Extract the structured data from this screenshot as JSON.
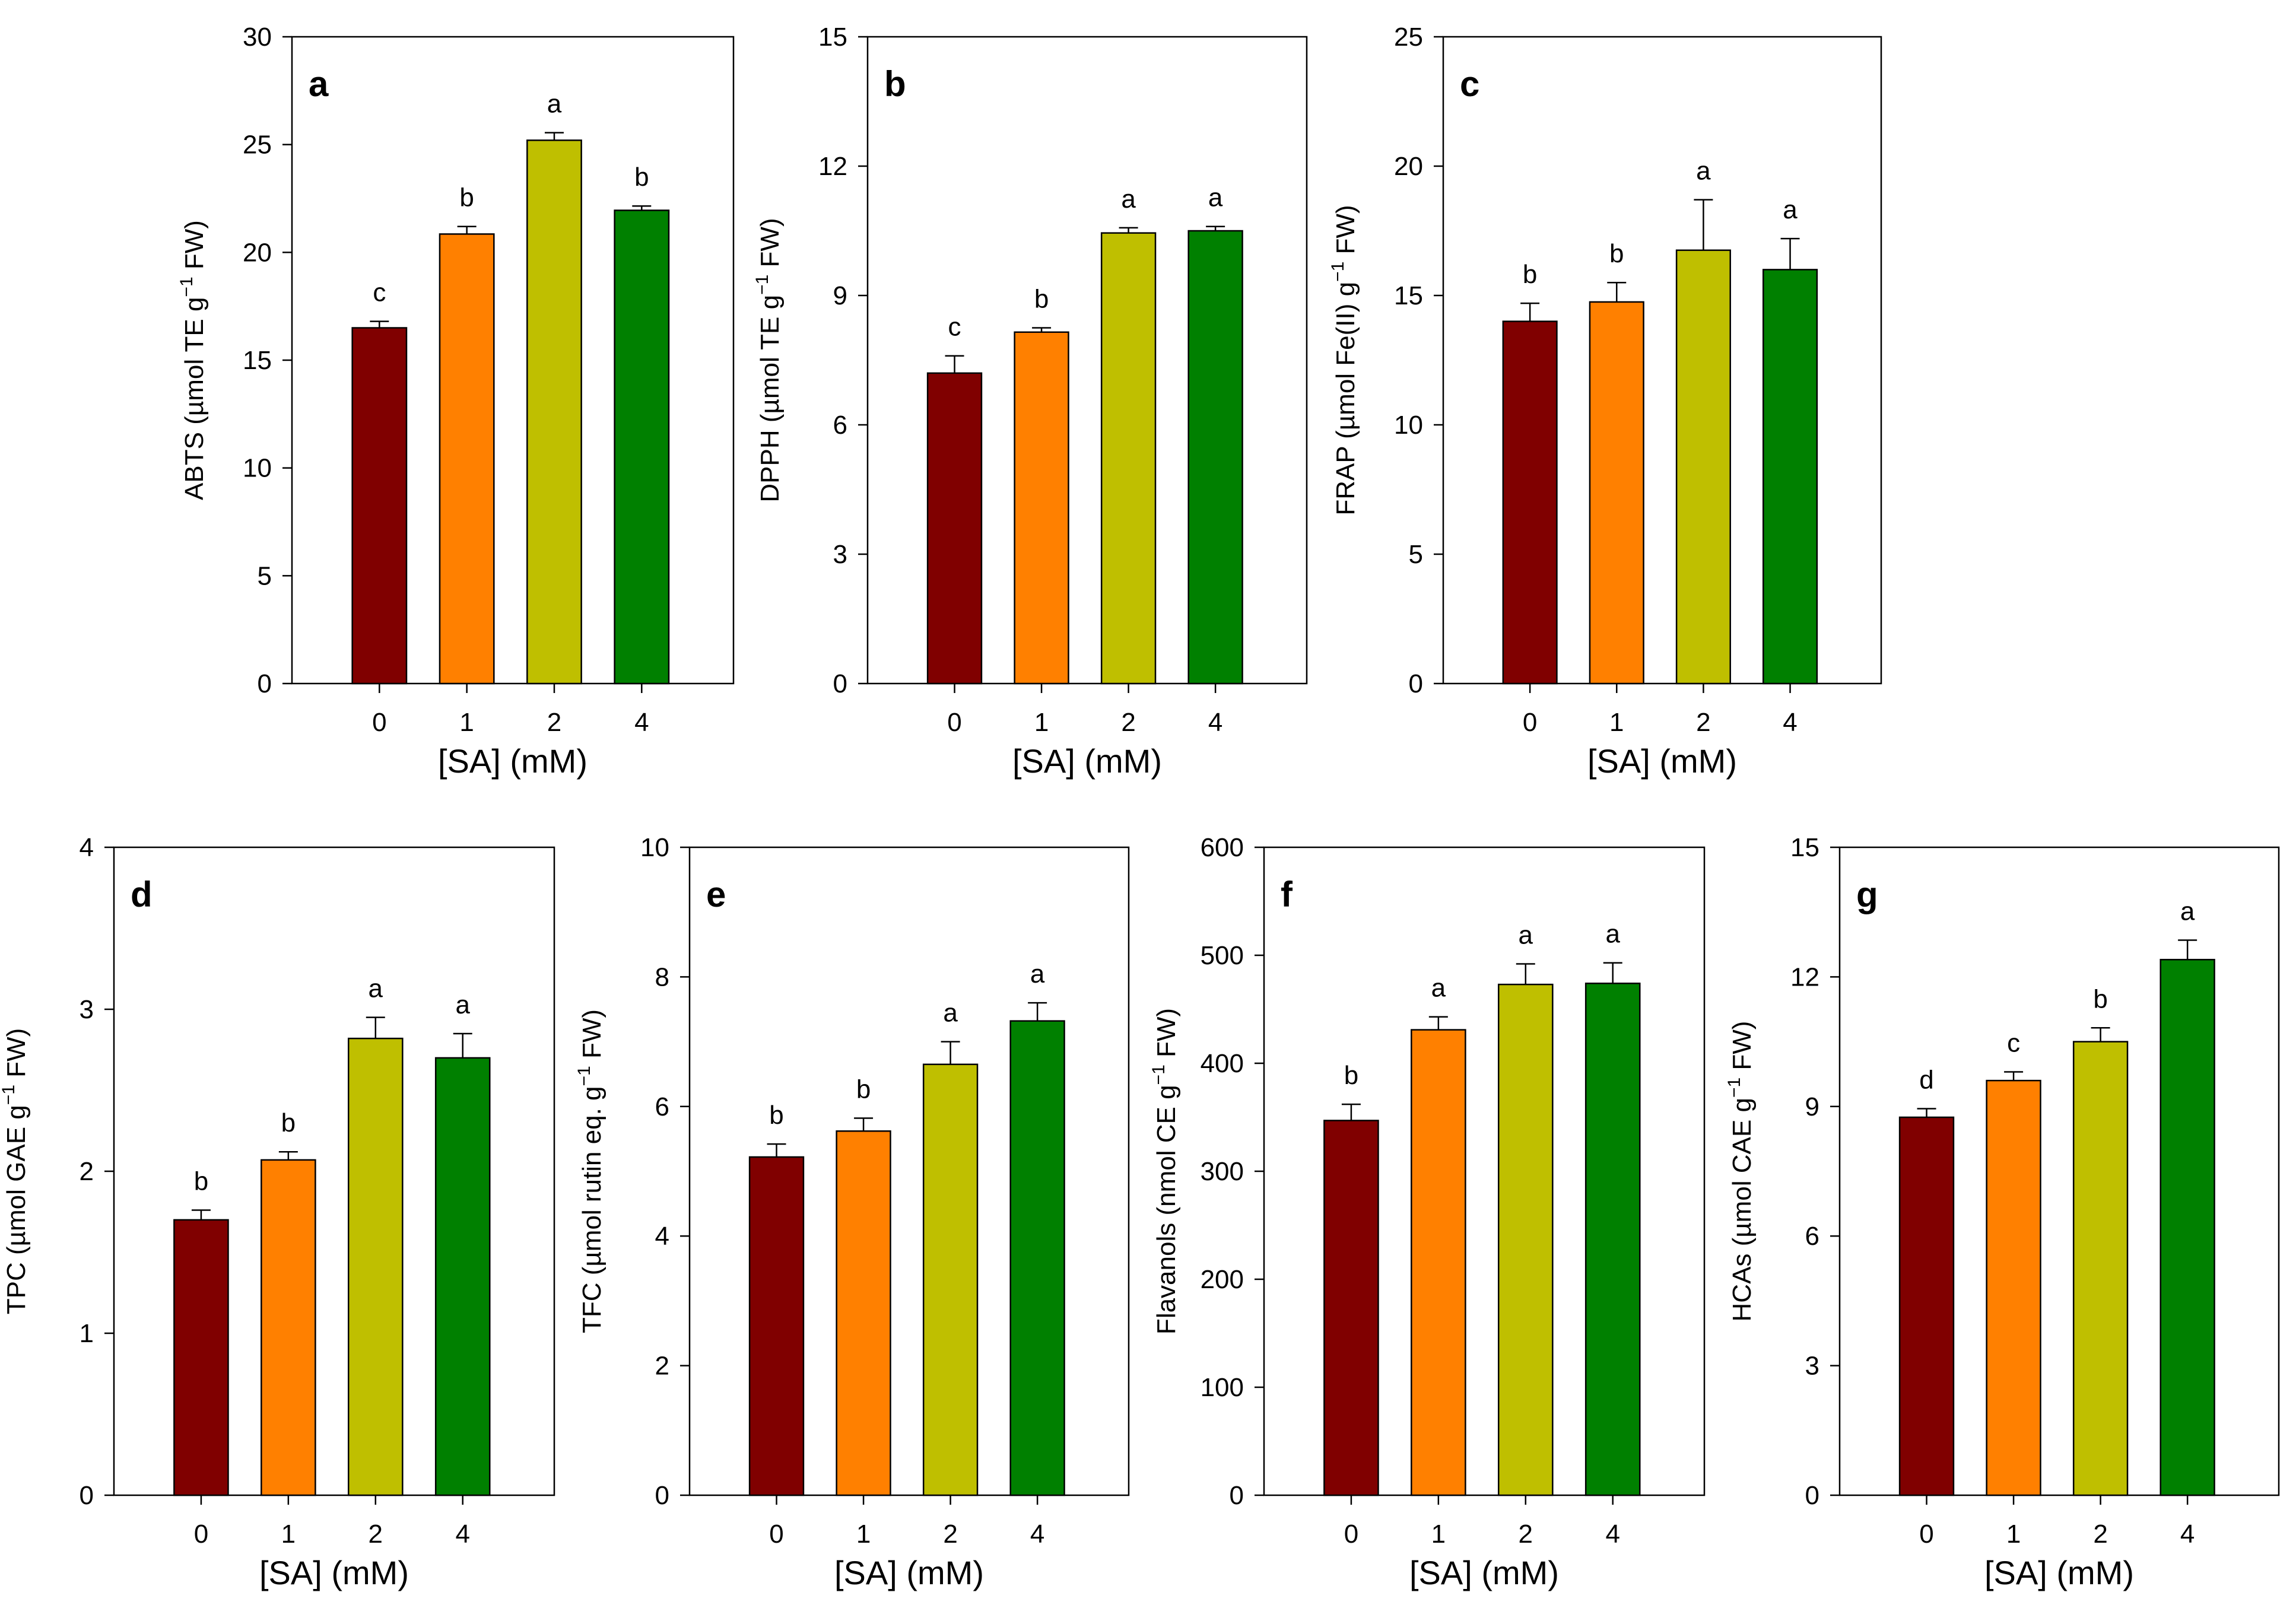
{
  "colors": {
    "series": [
      "#800000",
      "#FF8000",
      "#BFBF00",
      "#008000"
    ],
    "axis": "#000000",
    "background": "#FFFFFF"
  },
  "chart_data": [
    {
      "panel": "a",
      "type": "bar",
      "categories": [
        "0",
        "1",
        "2",
        "4"
      ],
      "values": [
        16.5,
        20.85,
        25.2,
        21.95
      ],
      "errors": [
        0.3,
        0.35,
        0.35,
        0.2
      ],
      "significance": [
        "c",
        "b",
        "a",
        "b"
      ],
      "ylim": [
        0,
        30
      ],
      "yticks": [
        "0",
        "5",
        "10",
        "15",
        "20",
        "25",
        "30"
      ],
      "xlabel": "[SA] (mM)",
      "ylabel": {
        "prefix": "ABTS (µmol TE g",
        "sup": "−1",
        "suffix": " FW)"
      }
    },
    {
      "panel": "b",
      "type": "bar",
      "categories": [
        "0",
        "1",
        "2",
        "4"
      ],
      "values": [
        7.2,
        8.15,
        10.45,
        10.5
      ],
      "errors": [
        0.4,
        0.1,
        0.12,
        0.1
      ],
      "significance": [
        "c",
        "b",
        "a",
        "a"
      ],
      "ylim": [
        0,
        15
      ],
      "yticks": [
        "0",
        "3",
        "6",
        "9",
        "12",
        "15"
      ],
      "xlabel": "[SA] (mM)",
      "ylabel": {
        "prefix": "DPPH (µmol TE g",
        "sup": "−1",
        "suffix": " FW)"
      }
    },
    {
      "panel": "c",
      "type": "bar",
      "categories": [
        "0",
        "1",
        "2",
        "4"
      ],
      "values": [
        14.0,
        14.75,
        16.75,
        16.0
      ],
      "errors": [
        0.7,
        0.75,
        1.95,
        1.2
      ],
      "significance": [
        "b",
        "b",
        "a",
        "a"
      ],
      "ylim": [
        0,
        25
      ],
      "yticks": [
        "0",
        "5",
        "10",
        "15",
        "20",
        "25"
      ],
      "xlabel": "[SA] (mM)",
      "ylabel": {
        "prefix": "FRAP (µmol Fe(II) g",
        "sup": "−1",
        "suffix": " FW)"
      }
    },
    {
      "panel": "d",
      "type": "bar",
      "categories": [
        "0",
        "1",
        "2",
        "4"
      ],
      "values": [
        1.7,
        2.07,
        2.82,
        2.7
      ],
      "errors": [
        0.06,
        0.05,
        0.13,
        0.15
      ],
      "significance": [
        "b",
        "b",
        "a",
        "a"
      ],
      "ylim": [
        0,
        4
      ],
      "yticks": [
        "0",
        "1",
        "2",
        "3",
        "4"
      ],
      "xlabel": "[SA] (mM)",
      "ylabel": {
        "prefix": "TPC (µmol GAE g",
        "sup": "−1",
        "suffix": " FW)"
      }
    },
    {
      "panel": "e",
      "type": "bar",
      "categories": [
        "0",
        "1",
        "2",
        "4"
      ],
      "values": [
        5.22,
        5.62,
        6.65,
        7.32
      ],
      "errors": [
        0.2,
        0.2,
        0.35,
        0.28
      ],
      "significance": [
        "b",
        "b",
        "a",
        "a"
      ],
      "ylim": [
        0,
        10
      ],
      "yticks": [
        "0",
        "2",
        "4",
        "6",
        "8",
        "10"
      ],
      "xlabel": "[SA] (mM)",
      "ylabel": {
        "prefix": "TFC (µmol rutin eq. g",
        "sup": "−1",
        "suffix": " FW)"
      }
    },
    {
      "panel": "f",
      "type": "bar",
      "categories": [
        "0",
        "1",
        "2",
        "4"
      ],
      "values": [
        347,
        431,
        473,
        474
      ],
      "errors": [
        15,
        12,
        19,
        19
      ],
      "significance": [
        "b",
        "a",
        "a",
        "a"
      ],
      "ylim": [
        0,
        600
      ],
      "yticks": [
        "0",
        "100",
        "200",
        "300",
        "400",
        "500",
        "600"
      ],
      "xlabel": "[SA] (mM)",
      "ylabel": {
        "prefix": "Flavanols (nmol CE g",
        "sup": "−1",
        "suffix": " FW)"
      }
    },
    {
      "panel": "g",
      "type": "bar",
      "categories": [
        "0",
        "1",
        "2",
        "4"
      ],
      "values": [
        8.75,
        9.6,
        10.5,
        12.4
      ],
      "errors": [
        0.2,
        0.2,
        0.32,
        0.45
      ],
      "significance": [
        "d",
        "c",
        "b",
        "a"
      ],
      "ylim": [
        0,
        15
      ],
      "yticks": [
        "0",
        "3",
        "6",
        "9",
        "12",
        "15"
      ],
      "xlabel": "[SA] (mM)",
      "ylabel": {
        "prefix": "HCAs (µmol CAE g",
        "sup": "−1",
        "suffix": " FW)"
      }
    }
  ]
}
